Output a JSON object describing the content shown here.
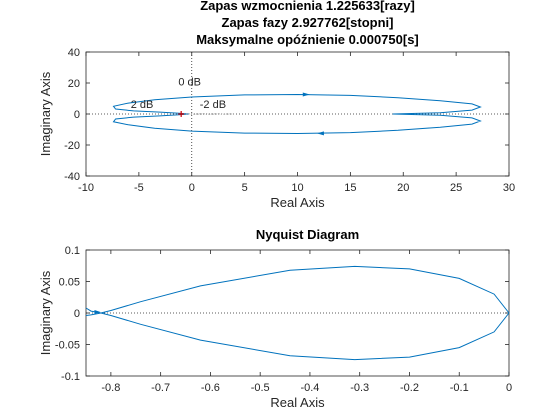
{
  "chart_data": [
    {
      "type": "line",
      "title_lines": [
        "Zapas wzmocnienia 1.225633[razy]",
        "Zapas fazy 2.927762[stopni]",
        "Maksymalne opóźnienie 0.000750[s]"
      ],
      "xlabel": "Real Axis",
      "ylabel": "Imaginary Axis",
      "xlim": [
        -10,
        30
      ],
      "ylim": [
        -40,
        40
      ],
      "xticks": [
        -10,
        -5,
        0,
        5,
        10,
        15,
        20,
        25,
        30
      ],
      "yticks": [
        -40,
        -20,
        0,
        20,
        40
      ],
      "annotations": [
        "0 dB",
        "2 dB",
        "-2 dB"
      ],
      "critical_point": [
        -1,
        0
      ],
      "color": "#0072BD",
      "series": [
        {
          "points": [
            [
              19.0,
              0.0
            ],
            [
              23.5,
              0.8
            ],
            [
              26.5,
              2.5
            ],
            [
              27.3,
              4.5
            ],
            [
              26.5,
              6.5
            ],
            [
              23.5,
              8.5
            ],
            [
              19.5,
              10.5
            ],
            [
              15.0,
              12.0
            ],
            [
              10.0,
              12.6
            ],
            [
              5.0,
              12.3
            ],
            [
              0.0,
              11.0
            ],
            [
              -3.5,
              9.2
            ],
            [
              -6.0,
              7.0
            ],
            [
              -7.4,
              5.0
            ],
            [
              -7.2,
              3.2
            ],
            [
              -5.5,
              2.0
            ],
            [
              -3.0,
              1.2
            ],
            [
              -1.2,
              0.5
            ],
            [
              -0.3,
              0.0
            ]
          ]
        },
        {
          "points": [
            [
              19.0,
              0.0
            ],
            [
              23.5,
              -0.8
            ],
            [
              26.5,
              -2.5
            ],
            [
              27.3,
              -4.5
            ],
            [
              26.5,
              -6.5
            ],
            [
              23.5,
              -8.5
            ],
            [
              19.5,
              -10.5
            ],
            [
              15.0,
              -12.0
            ],
            [
              10.0,
              -12.6
            ],
            [
              5.0,
              -12.3
            ],
            [
              0.0,
              -11.0
            ],
            [
              -3.5,
              -9.2
            ],
            [
              -6.0,
              -7.0
            ],
            [
              -7.4,
              -5.0
            ],
            [
              -7.2,
              -3.2
            ],
            [
              -5.5,
              -2.0
            ],
            [
              -3.0,
              -1.2
            ],
            [
              -1.2,
              -0.5
            ],
            [
              -0.3,
              0.0
            ]
          ]
        }
      ]
    },
    {
      "type": "line",
      "title_lines": [
        "Nyquist Diagram"
      ],
      "xlabel": "Real Axis",
      "ylabel": "Imaginary Axis",
      "xlim": [
        -0.85,
        0
      ],
      "ylim": [
        -0.1,
        0.1
      ],
      "xticks": [
        -0.8,
        -0.7,
        -0.6,
        -0.5,
        -0.4,
        -0.3,
        -0.2,
        -0.1,
        0
      ],
      "yticks": [
        -0.1,
        -0.05,
        0,
        0.05,
        0.1
      ],
      "color": "#0072BD",
      "series": [
        {
          "points": [
            [
              0.0,
              0.0
            ],
            [
              -0.03,
              0.03
            ],
            [
              -0.1,
              0.055
            ],
            [
              -0.2,
              0.07
            ],
            [
              -0.31,
              0.074
            ],
            [
              -0.44,
              0.068
            ],
            [
              -0.62,
              0.043
            ],
            [
              -0.74,
              0.018
            ],
            [
              -0.8,
              0.004
            ],
            [
              -0.82,
              0.0
            ],
            [
              -0.84,
              -0.003
            ],
            [
              -0.85,
              -0.004
            ]
          ]
        },
        {
          "points": [
            [
              0.0,
              0.0
            ],
            [
              -0.03,
              -0.03
            ],
            [
              -0.1,
              -0.055
            ],
            [
              -0.2,
              -0.07
            ],
            [
              -0.31,
              -0.074
            ],
            [
              -0.44,
              -0.068
            ],
            [
              -0.62,
              -0.043
            ],
            [
              -0.74,
              -0.018
            ],
            [
              -0.8,
              -0.004
            ],
            [
              -0.82,
              0.0
            ],
            [
              -0.84,
              0.003
            ],
            [
              -0.85,
              0.008
            ]
          ]
        }
      ]
    }
  ]
}
